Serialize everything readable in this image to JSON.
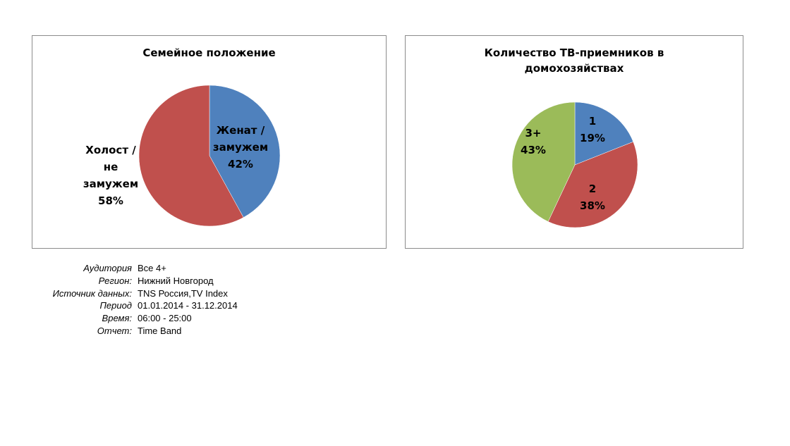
{
  "charts": [
    {
      "title": "Семейное положение",
      "chart_data": {
        "type": "pie",
        "slices": [
          {
            "label_lines": [
              "Женат /",
              "замужем"
            ],
            "value": 42,
            "value_label": "42%",
            "color": "#4F81BD"
          },
          {
            "label_lines": [
              "Холост /",
              "не",
              "замужем"
            ],
            "value": 58,
            "value_label": "58%",
            "color": "#C0504D"
          }
        ]
      }
    },
    {
      "title": "Количество ТВ-приемников в\nдомохозяйствах",
      "chart_data": {
        "type": "pie",
        "slices": [
          {
            "label_lines": [
              "1"
            ],
            "value": 19,
            "value_label": "19%",
            "color": "#4F81BD"
          },
          {
            "label_lines": [
              "2"
            ],
            "value": 38,
            "value_label": "38%",
            "color": "#C0504D"
          },
          {
            "label_lines": [
              "3+"
            ],
            "value": 43,
            "value_label": "43%",
            "color": "#9BBB59"
          }
        ]
      }
    }
  ],
  "info": [
    {
      "label": "Аудитория",
      "value": "Все 4+"
    },
    {
      "label": "Регион:",
      "value": "Нижний Новгород"
    },
    {
      "label": "Источник данных:",
      "value": "TNS Россия,TV Index"
    },
    {
      "label": "Период",
      "value": "01.01.2014 - 31.12.2014"
    },
    {
      "label": "Время:",
      "value": "06:00 - 25:00"
    },
    {
      "label": "Отчет:",
      "value": "Time Band"
    }
  ]
}
